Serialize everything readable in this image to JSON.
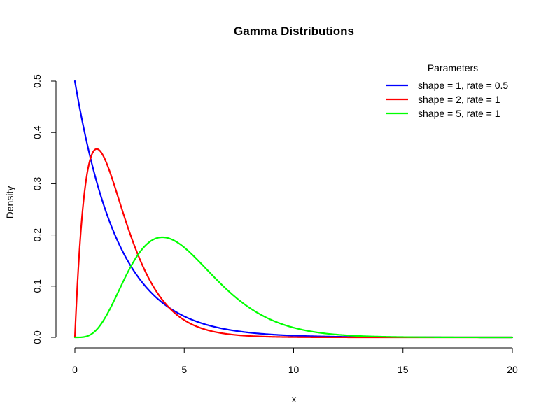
{
  "chart_data": {
    "type": "line",
    "title": "Gamma Distributions",
    "xlabel": "x",
    "ylabel": "Density",
    "xlim": [
      0,
      20
    ],
    "ylim": [
      0,
      0.5
    ],
    "x_ticks": [
      0,
      5,
      10,
      15,
      20
    ],
    "y_ticks": [
      0.0,
      0.1,
      0.2,
      0.3,
      0.4,
      0.5
    ],
    "x_tick_labels": [
      "0",
      "5",
      "10",
      "15",
      "20"
    ],
    "y_tick_labels": [
      "0.0",
      "0.1",
      "0.2",
      "0.3",
      "0.4",
      "0.5"
    ],
    "grid": false,
    "legend": {
      "title": "Parameters",
      "placement": "top-right"
    },
    "series": [
      {
        "name": "shape = 1, rate = 0.5",
        "color": "#0000ff",
        "shape": 1,
        "rate": 0.5,
        "x": [
          0,
          0.5,
          1,
          1.5,
          2,
          3,
          4,
          5,
          6,
          8,
          10,
          12,
          15,
          20
        ],
        "y": [
          0.5,
          0.389,
          0.303,
          0.236,
          0.184,
          0.112,
          0.068,
          0.041,
          0.025,
          0.009,
          0.003,
          0.001,
          0.0003,
          0.0
        ]
      },
      {
        "name": "shape = 2, rate = 1",
        "color": "#ff0000",
        "shape": 2,
        "rate": 1,
        "x": [
          0,
          0.25,
          0.5,
          1,
          1.5,
          2,
          3,
          4,
          5,
          6,
          8,
          10,
          15,
          20
        ],
        "y": [
          0.0,
          0.195,
          0.303,
          0.368,
          0.335,
          0.271,
          0.149,
          0.073,
          0.034,
          0.015,
          0.003,
          0.0005,
          0.0,
          0.0
        ]
      },
      {
        "name": "shape = 5, rate = 1",
        "color": "#00ff00",
        "shape": 5,
        "rate": 1,
        "x": [
          0,
          1,
          2,
          3,
          4,
          5,
          6,
          7,
          8,
          10,
          12,
          15,
          20
        ],
        "y": [
          0.0,
          0.015,
          0.09,
          0.168,
          0.195,
          0.175,
          0.134,
          0.091,
          0.057,
          0.019,
          0.005,
          0.0006,
          0.0
        ]
      }
    ]
  }
}
